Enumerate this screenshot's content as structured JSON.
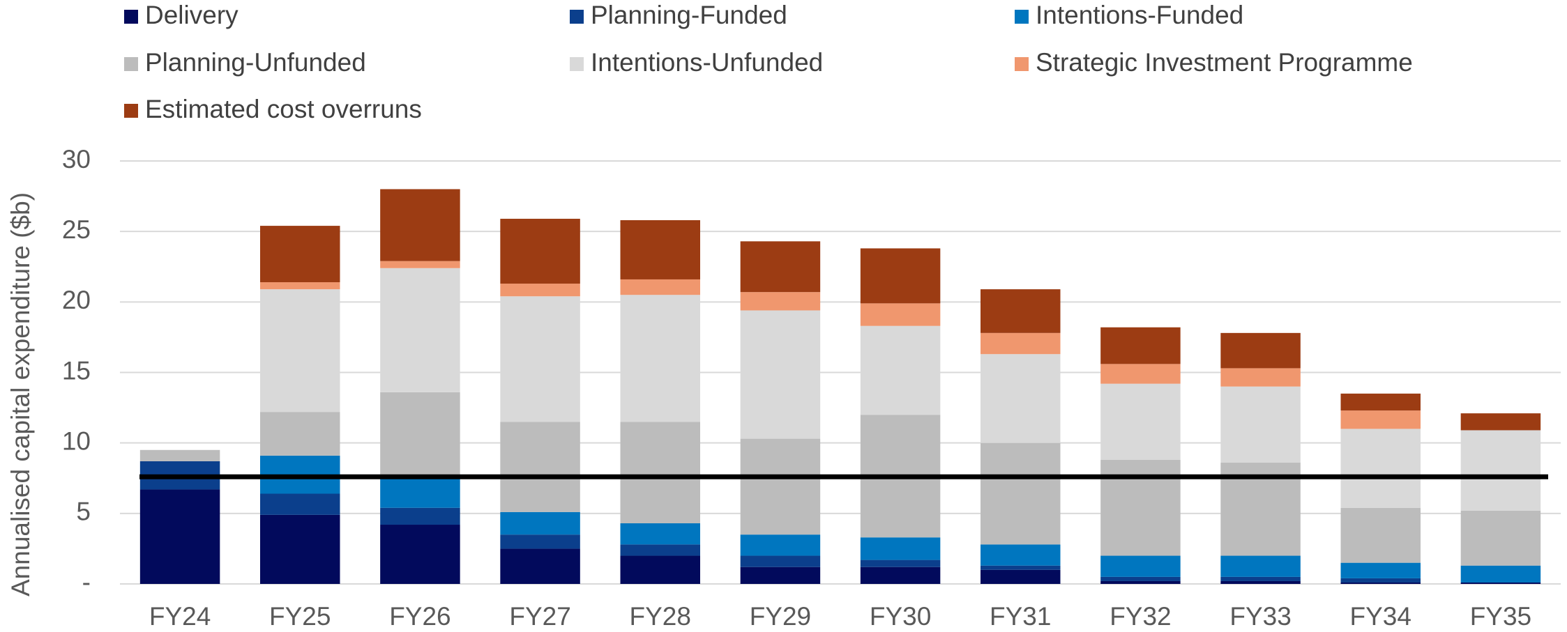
{
  "chart_data": {
    "type": "stacked_bar",
    "y_label": "Annualised capital expenditure ($b)",
    "categories": [
      "FY24",
      "FY25",
      "FY26",
      "FY27",
      "FY28",
      "FY29",
      "FY30",
      "FY31",
      "FY32",
      "FY33",
      "FY34",
      "FY35"
    ],
    "series": [
      {
        "name": "Delivery",
        "color": "#020a5c",
        "values": [
          6.7,
          4.9,
          4.2,
          2.5,
          2.0,
          1.2,
          1.2,
          1.0,
          0.2,
          0.2,
          0.1,
          0.1
        ]
      },
      {
        "name": "Planning-Funded",
        "color": "#0b3f8c",
        "values": [
          2.0,
          1.5,
          1.2,
          1.0,
          0.8,
          0.8,
          0.5,
          0.3,
          0.3,
          0.3,
          0.3,
          0
        ]
      },
      {
        "name": "Intentions-Funded",
        "color": "#0076bf",
        "values": [
          0,
          2.7,
          2.2,
          1.6,
          1.5,
          1.5,
          1.6,
          1.5,
          1.5,
          1.5,
          1.1,
          1.2
        ]
      },
      {
        "name": "Planning-Unfunded",
        "color": "#bcbcbc",
        "values": [
          0.8,
          3.1,
          6.0,
          6.4,
          7.2,
          6.8,
          8.7,
          7.2,
          6.8,
          6.6,
          3.9,
          3.9
        ]
      },
      {
        "name": "Intentions-Unfunded",
        "color": "#d9d9d9",
        "values": [
          0,
          8.7,
          8.8,
          8.9,
          9.0,
          9.1,
          6.3,
          6.3,
          5.4,
          5.4,
          5.6,
          5.7
        ]
      },
      {
        "name": "Strategic Investment Programme",
        "color": "#f0976e",
        "values": [
          0,
          0.5,
          0.5,
          0.9,
          1.1,
          1.3,
          1.6,
          1.5,
          1.4,
          1.3,
          1.3,
          0
        ]
      },
      {
        "name": "Estimated cost overruns",
        "color": "#9c3c13",
        "values": [
          0,
          4.0,
          5.1,
          4.6,
          4.2,
          3.6,
          3.9,
          3.1,
          2.6,
          2.5,
          1.2,
          1.2
        ]
      }
    ],
    "reference_line": 7.6,
    "reference_color": "#000000",
    "ylim": [
      0,
      30
    ],
    "yticks": [
      {
        "value": 0,
        "label": "-"
      },
      5,
      10,
      15,
      20,
      25,
      30
    ],
    "grid": true,
    "legend": "top"
  }
}
